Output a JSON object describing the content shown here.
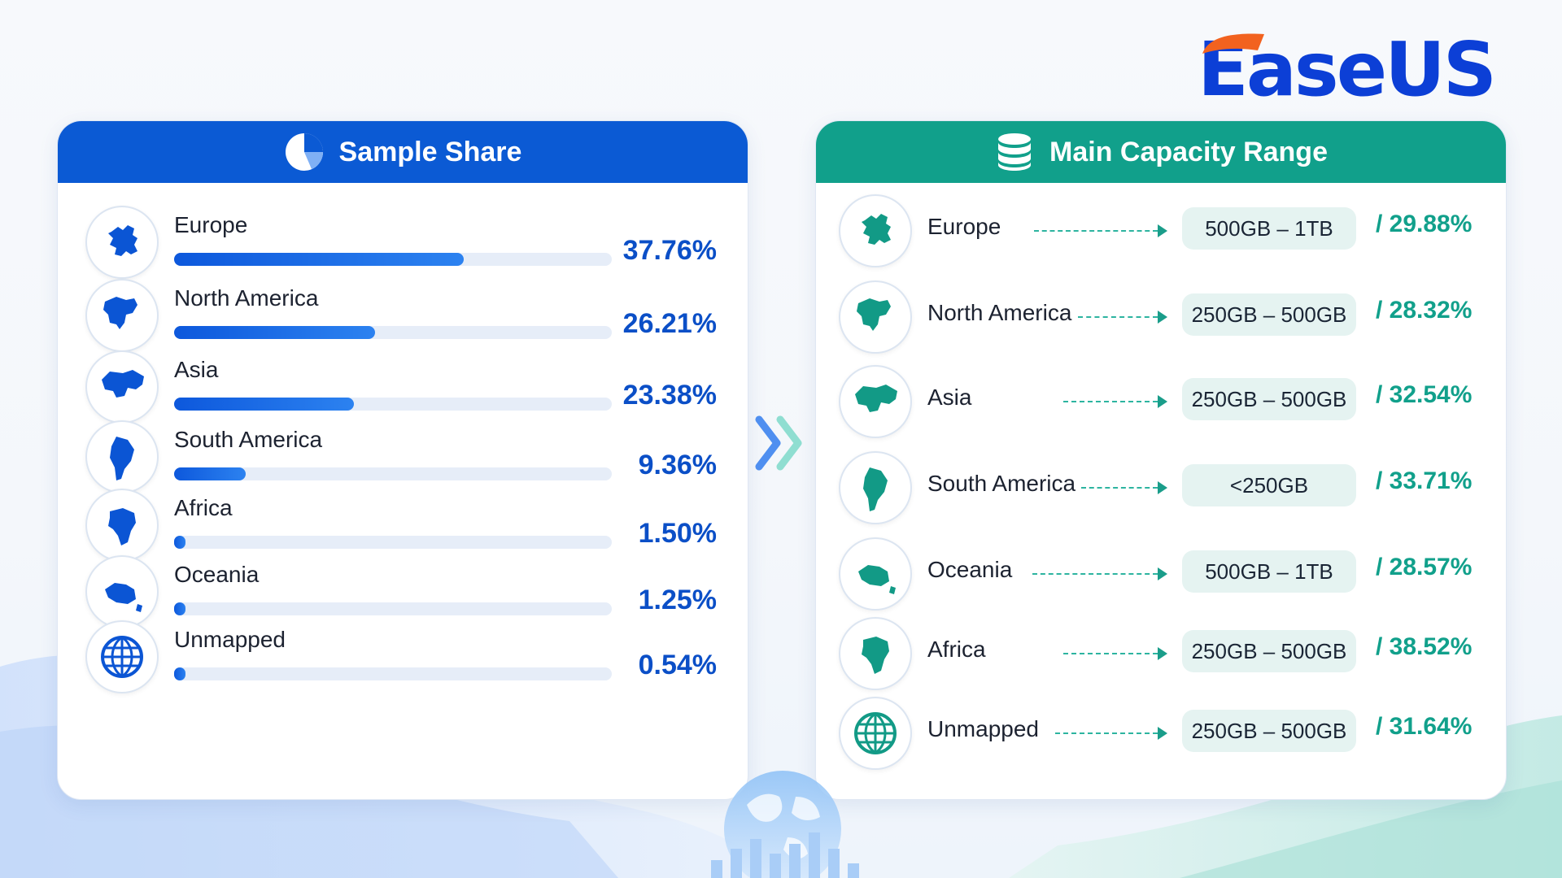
{
  "brand": {
    "logo_text": "EaseUS"
  },
  "chart_data": [
    {
      "type": "bar",
      "title": "Sample Share",
      "categories": [
        "Europe",
        "North America",
        "Asia",
        "South America",
        "Africa",
        "Oceania",
        "Unmapped"
      ],
      "values": [
        37.76,
        26.21,
        23.38,
        9.36,
        1.5,
        1.25,
        0.54
      ],
      "value_labels": [
        "37.76%",
        "26.21%",
        "23.38%",
        "9.36%",
        "1.50%",
        "1.25%",
        "0.54%"
      ],
      "unit": "%",
      "ylim": [
        0,
        57
      ]
    },
    {
      "type": "table",
      "title": "Main Capacity Range",
      "rows": [
        {
          "region": "Europe",
          "range": "500GB – 1TB",
          "share": "/ 29.88%"
        },
        {
          "region": "North America",
          "range": "250GB – 500GB",
          "share": "/ 28.32%"
        },
        {
          "region": "Asia",
          "range": "250GB – 500GB",
          "share": "/ 32.54%"
        },
        {
          "region": "South America",
          "range": "<250GB",
          "share": "/ 33.71%"
        },
        {
          "region": "Oceania",
          "range": "500GB – 1TB",
          "share": "/ 28.57%"
        },
        {
          "region": "Africa",
          "range": "250GB – 500GB",
          "share": "/ 38.52%"
        },
        {
          "region": "Unmapped",
          "range": "250GB – 500GB",
          "share": "/ 31.64%"
        }
      ]
    }
  ],
  "icons": {
    "left_header": "pie-chart-icon",
    "right_header": "database-icon",
    "separator": "double-chevron-right-icon",
    "footer": "globe-with-bars-icon"
  },
  "colors": {
    "blue": "#0b5ad4",
    "teal": "#11a08b"
  }
}
